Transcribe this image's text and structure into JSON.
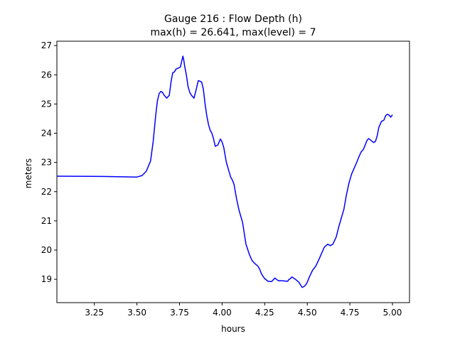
{
  "chart_data": {
    "type": "line",
    "title": "Gauge 216 : Flow Depth (h)",
    "subtitle": "max(h) =  26.641,    max(level) = 7",
    "xlabel": "hours",
    "ylabel": "meters",
    "xlim": [
      3.03,
      5.1
    ],
    "ylim": [
      18.2,
      27.15
    ],
    "xticks": [
      3.25,
      3.5,
      3.75,
      4.0,
      4.25,
      4.5,
      4.75,
      5.0
    ],
    "xtick_labels": [
      "3.25",
      "3.50",
      "3.75",
      "4.00",
      "4.25",
      "4.50",
      "4.75",
      "5.00"
    ],
    "yticks": [
      19,
      20,
      21,
      22,
      23,
      24,
      25,
      26,
      27
    ],
    "ytick_labels": [
      "19",
      "20",
      "21",
      "22",
      "23",
      "24",
      "25",
      "26",
      "27"
    ],
    "grid": false,
    "series": [
      {
        "color": "#0000ff",
        "x": [
          3.03,
          3.3,
          3.5,
          3.53,
          3.555,
          3.58,
          3.595,
          3.61,
          3.62,
          3.63,
          3.64,
          3.65,
          3.66,
          3.675,
          3.69,
          3.7,
          3.71,
          3.72,
          3.73,
          3.74,
          3.755,
          3.77,
          3.775,
          3.78,
          3.79,
          3.8,
          3.81,
          3.82,
          3.835,
          3.85,
          3.86,
          3.87,
          3.88,
          3.89,
          3.9,
          3.91,
          3.92,
          3.93,
          3.94,
          3.95,
          3.96,
          3.975,
          3.99,
          4.0,
          4.01,
          4.025,
          4.04,
          4.05,
          4.06,
          4.07,
          4.085,
          4.1,
          4.12,
          4.14,
          4.16,
          4.175,
          4.19,
          4.2,
          4.21,
          4.22,
          4.23,
          4.24,
          4.25,
          4.27,
          4.29,
          4.31,
          4.33,
          4.35,
          4.37,
          4.385,
          4.39,
          4.4,
          4.41,
          4.43,
          4.45,
          4.47,
          4.48,
          4.49,
          4.5,
          4.51,
          4.53,
          4.55,
          4.57,
          4.585,
          4.6,
          4.61,
          4.62,
          4.635,
          4.65,
          4.67,
          4.685,
          4.7,
          4.715,
          4.73,
          4.745,
          4.76,
          4.775,
          4.79,
          4.8,
          4.815,
          4.83,
          4.84,
          4.85,
          4.86,
          4.875,
          4.89,
          4.9,
          4.91,
          4.92,
          4.935,
          4.95,
          4.96,
          4.97,
          4.98,
          4.99,
          5.0
        ],
        "y": [
          22.53,
          22.52,
          22.5,
          22.55,
          22.7,
          23.05,
          23.7,
          24.6,
          25.1,
          25.35,
          25.43,
          25.4,
          25.3,
          25.2,
          25.3,
          25.75,
          26.07,
          26.1,
          26.2,
          26.22,
          26.27,
          26.64,
          26.5,
          26.3,
          26.0,
          25.6,
          25.4,
          25.3,
          25.2,
          25.55,
          25.8,
          25.78,
          25.75,
          25.5,
          25.0,
          24.6,
          24.3,
          24.1,
          24.0,
          23.8,
          23.55,
          23.6,
          23.8,
          23.7,
          23.5,
          23.0,
          22.7,
          22.5,
          22.4,
          22.25,
          21.75,
          21.35,
          20.95,
          20.2,
          19.85,
          19.65,
          19.55,
          19.5,
          19.45,
          19.35,
          19.2,
          19.1,
          19.02,
          18.93,
          18.92,
          19.04,
          18.95,
          18.95,
          18.94,
          18.93,
          18.98,
          19.02,
          19.08,
          19.0,
          18.9,
          18.72,
          18.75,
          18.8,
          18.9,
          19.05,
          19.3,
          19.45,
          19.7,
          19.9,
          20.1,
          20.15,
          20.2,
          20.15,
          20.2,
          20.45,
          20.8,
          21.1,
          21.4,
          21.9,
          22.3,
          22.6,
          22.8,
          23.0,
          23.15,
          23.35,
          23.45,
          23.6,
          23.75,
          23.82,
          23.75,
          23.68,
          23.72,
          23.9,
          24.2,
          24.4,
          24.45,
          24.6,
          24.65,
          24.62,
          24.55,
          24.63
        ]
      }
    ]
  }
}
